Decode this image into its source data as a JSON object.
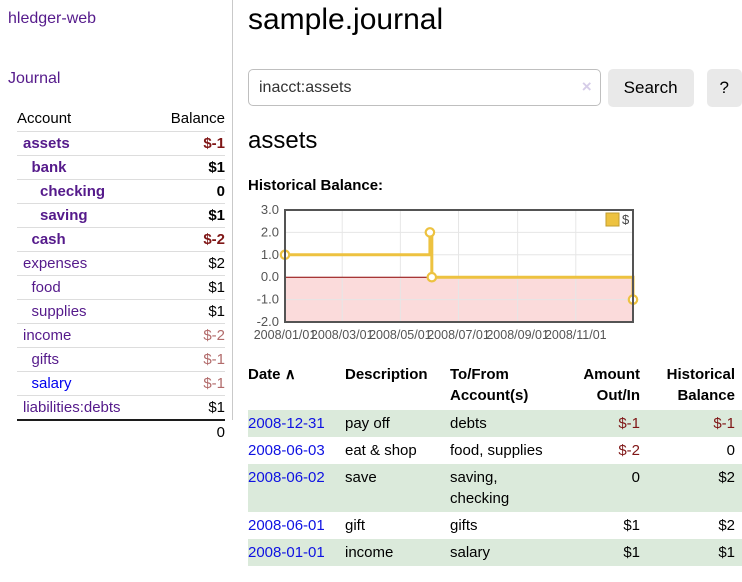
{
  "app": {
    "title": "hledger-web"
  },
  "sidebar": {
    "journal_label": "Journal",
    "accounts_table": {
      "headers": {
        "account": "Account",
        "balance": "Balance"
      },
      "rows": [
        {
          "name": "assets",
          "indent": 0,
          "bold": true,
          "color": "purple",
          "balance": "$-1",
          "balance_style": "neg-strong"
        },
        {
          "name": "bank",
          "indent": 1,
          "bold": true,
          "color": "purple",
          "balance": "$1",
          "balance_style": "pos"
        },
        {
          "name": "checking",
          "indent": 2,
          "bold": true,
          "color": "purple",
          "balance": "0",
          "balance_style": "pos"
        },
        {
          "name": "saving",
          "indent": 2,
          "bold": true,
          "color": "purple",
          "balance": "$1",
          "balance_style": "pos"
        },
        {
          "name": "cash",
          "indent": 1,
          "bold": true,
          "color": "purple",
          "balance": "$-2",
          "balance_style": "neg-strong"
        },
        {
          "name": "expenses",
          "indent": 0,
          "bold": false,
          "color": "purple",
          "balance": "$2",
          "balance_style": "pos"
        },
        {
          "name": "food",
          "indent": 1,
          "bold": false,
          "color": "purple",
          "balance": "$1",
          "balance_style": "pos"
        },
        {
          "name": "supplies",
          "indent": 1,
          "bold": false,
          "color": "purple",
          "balance": "$1",
          "balance_style": "pos"
        },
        {
          "name": "income",
          "indent": 0,
          "bold": false,
          "color": "purple",
          "balance": "$-2",
          "balance_style": "neg-muted"
        },
        {
          "name": "gifts",
          "indent": 1,
          "bold": false,
          "color": "purple",
          "balance": "$-1",
          "balance_style": "neg-muted"
        },
        {
          "name": "salary",
          "indent": 1,
          "bold": false,
          "color": "blue",
          "balance": "$-1",
          "balance_style": "neg-muted"
        },
        {
          "name": "liabilities:debts",
          "indent": 0,
          "bold": false,
          "color": "purple",
          "balance": "$1",
          "balance_style": "pos"
        }
      ],
      "total": "0"
    }
  },
  "main": {
    "title": "sample.journal",
    "search": {
      "value": "inacct:assets",
      "clear_icon": "×",
      "button": "Search",
      "help_button": "?"
    },
    "account_heading": "assets"
  },
  "chart_data": {
    "type": "line",
    "step": true,
    "title": "Historical Balance:",
    "series": [
      {
        "name": "$",
        "color": "#edc240",
        "points": [
          {
            "date": "2008-01-01",
            "value": 1
          },
          {
            "date": "2008-06-01",
            "value": 2
          },
          {
            "date": "2008-06-03",
            "value": 0
          },
          {
            "date": "2008-12-31",
            "value": -1
          }
        ]
      }
    ],
    "x_range": [
      "2008-01-01",
      "2008-12-31"
    ],
    "ylim": [
      -2,
      3
    ],
    "y_ticks": [
      3,
      2,
      1,
      0,
      -1,
      -2
    ],
    "x_ticks": [
      {
        "date": "2008-01-01",
        "label": "2008/01/01"
      },
      {
        "date": "2008-03-01",
        "label": "2008/03/01"
      },
      {
        "date": "2008-05-01",
        "label": "2008/05/01"
      },
      {
        "date": "2008-07-01",
        "label": "2008/07/01"
      },
      {
        "date": "2008-09-01",
        "label": "2008/09/01"
      },
      {
        "date": "2008-11-01",
        "label": "2008/11/01"
      }
    ],
    "legend": {
      "label": "$",
      "position": "top-right"
    },
    "grid": true,
    "colors": {
      "negative_region": "#fbdbdb",
      "zero_line": "#8b0000",
      "border": "#545454",
      "gridline": "#e6e6e6",
      "tick_text": "#545454",
      "marker_fill": "#ffffff",
      "legend_swatch_border": "#c29d2f"
    }
  },
  "register": {
    "headers": {
      "date": "Date",
      "sort_icon": "∧",
      "description": "Description",
      "accounts": "To/From\nAccount(s)",
      "amount": "Amount\nOut/In",
      "balance": "Historical\nBalance"
    },
    "rows": [
      {
        "date": "2008-12-31",
        "description": "pay off",
        "accounts": "debts",
        "amount": "$-1",
        "amount_neg": true,
        "balance": "$-1",
        "balance_neg": true,
        "shaded": true
      },
      {
        "date": "2008-06-03",
        "description": "eat & shop",
        "accounts": "food, supplies",
        "amount": "$-2",
        "amount_neg": true,
        "balance": "0",
        "balance_neg": false,
        "shaded": false
      },
      {
        "date": "2008-06-02",
        "description": "save",
        "accounts": "saving, checking",
        "amount": "0",
        "amount_neg": false,
        "balance": "$2",
        "balance_neg": false,
        "shaded": true
      },
      {
        "date": "2008-06-01",
        "description": "gift",
        "accounts": "gifts",
        "amount": "$1",
        "amount_neg": false,
        "balance": "$2",
        "balance_neg": false,
        "shaded": false
      },
      {
        "date": "2008-01-01",
        "description": "income",
        "accounts": "salary",
        "amount": "$1",
        "amount_neg": false,
        "balance": "$1",
        "balance_neg": false,
        "shaded": true
      }
    ]
  }
}
